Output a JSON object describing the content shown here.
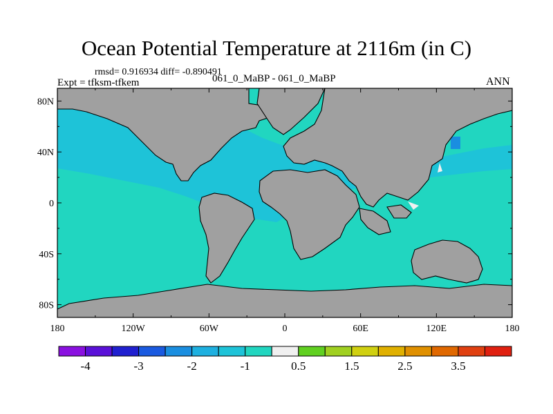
{
  "title": "Ocean Potential Temperature at 2116m (in C)",
  "stats_text": "rmsd= 0.916934 diff= -0.890491",
  "experiment_text": "Expt = tfksm-tfkem",
  "period_text": "061_0_MaBP - 061_0_MaBP",
  "season_text": "ANN",
  "colors": {
    "land": "#a0a0a0",
    "cyan_light": "#21d6c0",
    "cyan_mid": "#1ec3d8",
    "blue_mid": "#1a8ee0",
    "white": "#f0f0f0"
  },
  "chart_data": {
    "type": "heatmap",
    "map_projection": "cylindrical-equidistant",
    "x_range": [
      -180,
      180
    ],
    "y_range": [
      -90,
      90
    ],
    "x_ticks": [
      "180",
      "120W",
      "60W",
      "0",
      "60E",
      "120E",
      "180"
    ],
    "y_ticks": [
      "80N",
      "40N",
      "0",
      "40S",
      "80S"
    ],
    "colorbar": {
      "colors": [
        "#8a10e0",
        "#5a10d8",
        "#2020d0",
        "#1a5ae0",
        "#1a8ee0",
        "#1eb0e0",
        "#1ec3d8",
        "#21d6c0",
        "#f0f0f0",
        "#60d020",
        "#a0d020",
        "#d0d010",
        "#e0b000",
        "#e09000",
        "#e06800",
        "#e04010",
        "#e02010"
      ],
      "labels": [
        "-4",
        "-3",
        "-2",
        "-1",
        "0.5",
        "1.5",
        "2.5",
        "3.5"
      ]
    }
  }
}
